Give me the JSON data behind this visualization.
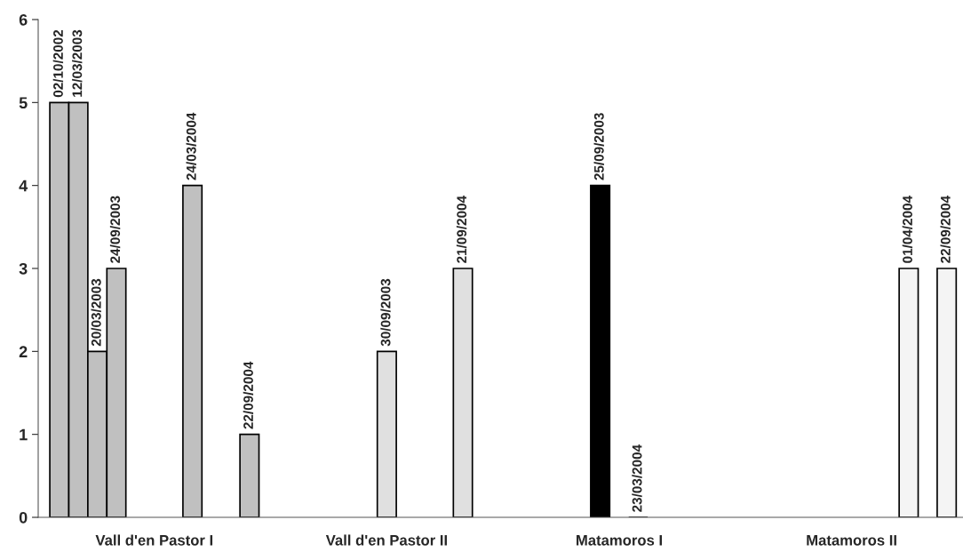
{
  "chart_data": {
    "type": "bar",
    "categories": [
      "Vall d'en Pastor I",
      "Vall d'en Pastor II",
      "Matamoros I",
      "Matamoros II"
    ],
    "series": [
      {
        "values": [
          5,
          null,
          null,
          null
        ],
        "value_labels": [
          "02/10/2002",
          null,
          null,
          null
        ],
        "colors": [
          "#c0c0c0",
          null,
          null,
          null
        ]
      },
      {
        "values": [
          5,
          null,
          null,
          null
        ],
        "value_labels": [
          "12/03/2003",
          null,
          null,
          null
        ],
        "colors": [
          "#c0c0c0",
          null,
          null,
          null
        ]
      },
      {
        "values": [
          2,
          null,
          null,
          null
        ],
        "value_labels": [
          "20/03/2003",
          null,
          null,
          null
        ],
        "colors": [
          "#c0c0c0",
          null,
          null,
          null
        ]
      },
      {
        "values": [
          3,
          null,
          null,
          null
        ],
        "value_labels": [
          "24/09/2003",
          null,
          null,
          null
        ],
        "colors": [
          "#c0c0c0",
          null,
          null,
          null
        ]
      },
      {
        "values": [
          null,
          null,
          4,
          null
        ],
        "value_labels": [
          null,
          null,
          "25/09/2003",
          null
        ],
        "colors": [
          null,
          null,
          "#000000",
          null
        ]
      },
      {
        "values": [
          null,
          2,
          null,
          null
        ],
        "value_labels": [
          null,
          "30/09/2003",
          null,
          null
        ],
        "colors": [
          null,
          "#e0e0e0",
          null,
          null
        ]
      },
      {
        "values": [
          null,
          null,
          0,
          null
        ],
        "value_labels": [
          null,
          null,
          "23/03/2004",
          null
        ],
        "colors": [
          null,
          null,
          "#000000",
          null
        ]
      },
      {
        "values": [
          4,
          null,
          null,
          null
        ],
        "value_labels": [
          "24/03/2004",
          null,
          null,
          null
        ],
        "colors": [
          "#c0c0c0",
          null,
          null,
          null
        ]
      },
      {
        "values": [
          null,
          null,
          null,
          3
        ],
        "value_labels": [
          null,
          null,
          null,
          "01/04/2004"
        ],
        "colors": [
          null,
          null,
          null,
          "#f4f4f4"
        ]
      },
      {
        "values": [
          null,
          3,
          null,
          null
        ],
        "value_labels": [
          null,
          "21/09/2004",
          null,
          null
        ],
        "colors": [
          null,
          "#e0e0e0",
          null,
          null
        ]
      },
      {
        "values": [
          1,
          null,
          null,
          3
        ],
        "value_labels": [
          "22/09/2004",
          null,
          null,
          "22/09/2004"
        ],
        "colors": [
          "#c0c0c0",
          null,
          null,
          "#f4f4f4"
        ]
      }
    ],
    "ylim": [
      0,
      6
    ],
    "yticks": [
      0,
      1,
      2,
      3,
      4,
      5,
      6
    ],
    "grid": false,
    "legend": false
  }
}
